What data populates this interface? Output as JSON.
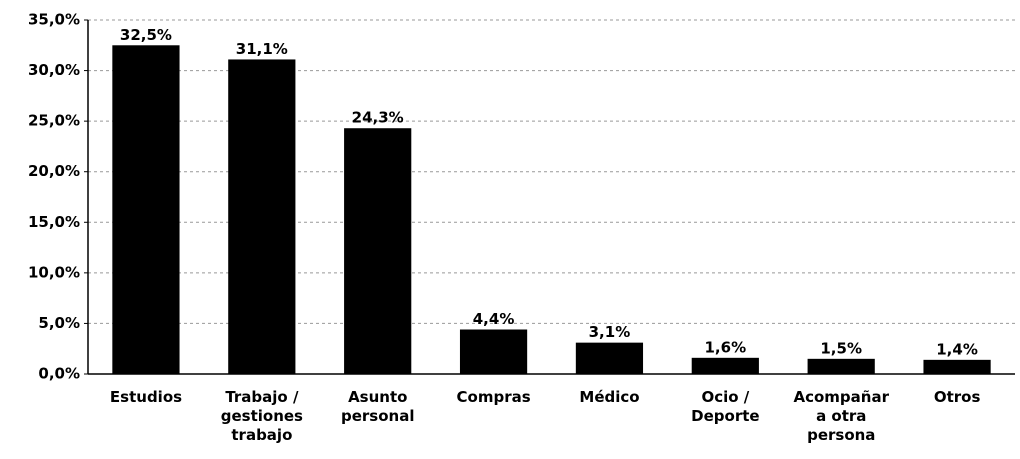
{
  "chart_data": {
    "type": "bar",
    "categories": [
      "Estudios",
      "Trabajo /\ngestiones\ntrabajo",
      "Asunto\npersonal",
      "Compras",
      "Médico",
      "Ocio /\nDeporte",
      "Acompañar\na otra\npersona",
      "Otros"
    ],
    "values": [
      32.5,
      31.1,
      24.3,
      4.4,
      3.1,
      1.6,
      1.5,
      1.4
    ],
    "value_labels": [
      "32,5%",
      "31,1%",
      "24,3%",
      "4,4%",
      "3,1%",
      "1,6%",
      "1,5%",
      "1,4%"
    ],
    "color": "#000000",
    "ylim": [
      0,
      35
    ],
    "yticks": [
      {
        "value": 0,
        "label": "0,0%"
      },
      {
        "value": 5,
        "label": "5,0%"
      },
      {
        "value": 10,
        "label": "10,0%"
      },
      {
        "value": 15,
        "label": "15,0%"
      },
      {
        "value": 20,
        "label": "20,0%"
      },
      {
        "value": 25,
        "label": "25,0%"
      },
      {
        "value": 30,
        "label": "30,0%"
      },
      {
        "value": 35,
        "label": "35,0%"
      }
    ],
    "grid": true
  }
}
